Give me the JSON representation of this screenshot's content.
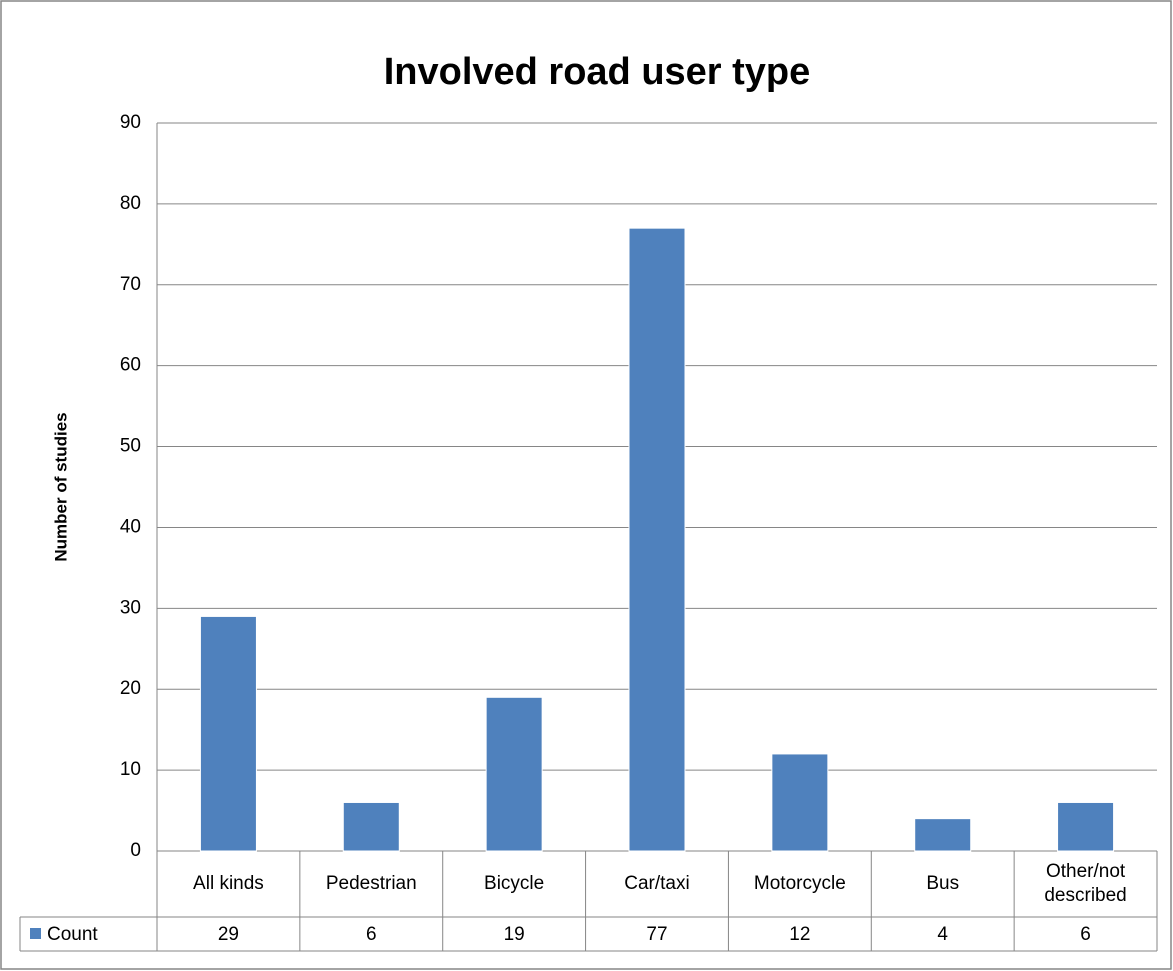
{
  "chart_data": {
    "type": "bar",
    "title": "Involved road user type",
    "ylabel": "Number of studies",
    "categories": [
      "All kinds",
      "Pedestrian",
      "Bicycle",
      "Car/taxi",
      "Motorcycle",
      "Bus",
      "Other/not described"
    ],
    "series": [
      {
        "name": "Count",
        "color": "#4f81bd",
        "values": [
          29,
          6,
          19,
          77,
          12,
          4,
          6
        ]
      }
    ],
    "ylim": [
      0,
      90
    ],
    "yticks": [
      0,
      10,
      20,
      30,
      40,
      50,
      60,
      70,
      80,
      90
    ],
    "grid": true,
    "legend": "data-table"
  }
}
